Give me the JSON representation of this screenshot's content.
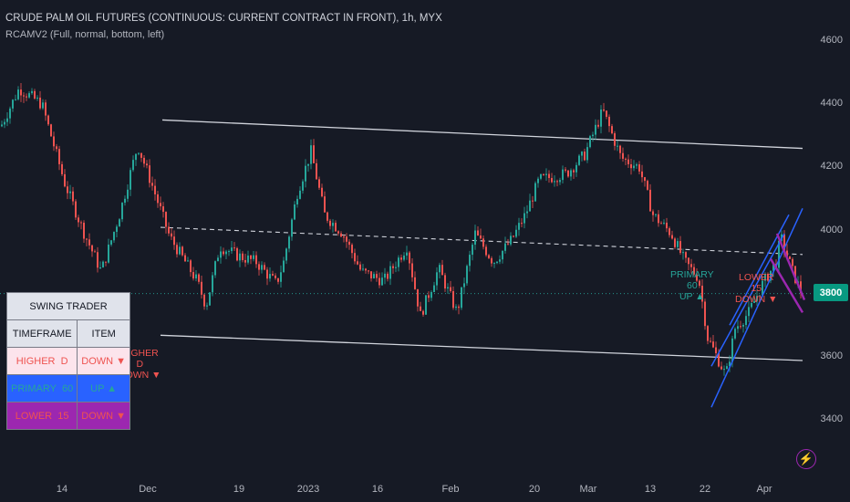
{
  "header": {
    "symbol_line": "CRUDE PALM OIL FUTURES (CONTINUOUS: CURRENT CONTRACT IN FRONT), 1h, MYX",
    "indicator_line": "RCAMV2 (Full, normal, bottom, left)"
  },
  "price_tag": "3800",
  "icon": "lightning-icon",
  "colors": {
    "background": "#161a25",
    "up": "#26a69a",
    "down": "#ef5350",
    "channel_blue": "#2962ff",
    "channel_purple": "#9c27b0",
    "trendline": "#d1d4dc",
    "price_tag": "#089981"
  },
  "swing_table": {
    "title": "SWING TRADER",
    "headers": [
      "TIMEFRAME",
      "ITEM"
    ],
    "rows": [
      {
        "label": "HIGHER",
        "tf": "D",
        "dir": "DOWN ▼",
        "bg": "#fce4ec",
        "fg": "#ef5350"
      },
      {
        "label": "PRIMARY",
        "tf": "60",
        "dir": "UP ▲",
        "bg": "#2962ff",
        "fg": "#26a69a"
      },
      {
        "label": "LOWER",
        "tf": "15",
        "dir": "DOWN ▼",
        "bg": "#9c27b0",
        "fg": "#ef5350"
      }
    ]
  },
  "annotations": {
    "higher": "HIGHER\nD\nDOWN ▼",
    "primary": "PRIMARY\n60\nUP ▲",
    "lower": "LOWER\n15\nDOWN ▼"
  },
  "chart_data": {
    "type": "candlestick",
    "title": "CRUDE PALM OIL FUTURES (CONTINUOUS: CURRENT CONTRACT IN FRONT), 1h, MYX",
    "y_ticks": [
      3400,
      3600,
      3800,
      4000,
      4200,
      4400,
      4600
    ],
    "ylim": [
      3320,
      4700
    ],
    "x_ticks": [
      "14",
      "Dec",
      "19",
      "2023",
      "16",
      "Feb",
      "20",
      "Mar",
      "13",
      "22",
      "Apr"
    ],
    "last_price": 3800,
    "price_path": [
      [
        0,
        4330
      ],
      [
        20,
        4450
      ],
      [
        45,
        4400
      ],
      [
        70,
        4150
      ],
      [
        90,
        4000
      ],
      [
        110,
        3870
      ],
      [
        130,
        4050
      ],
      [
        150,
        4270
      ],
      [
        165,
        4150
      ],
      [
        185,
        3980
      ],
      [
        215,
        3840
      ],
      [
        225,
        3760
      ],
      [
        240,
        3950
      ],
      [
        260,
        3920
      ],
      [
        280,
        3900
      ],
      [
        302,
        3830
      ],
      [
        310,
        3900
      ],
      [
        325,
        4120
      ],
      [
        340,
        4250
      ],
      [
        355,
        4050
      ],
      [
        375,
        3990
      ],
      [
        395,
        3870
      ],
      [
        420,
        3840
      ],
      [
        445,
        3950
      ],
      [
        460,
        3730
      ],
      [
        480,
        3880
      ],
      [
        500,
        3740
      ],
      [
        520,
        3990
      ],
      [
        540,
        3900
      ],
      [
        560,
        3970
      ],
      [
        575,
        4050
      ],
      [
        590,
        4160
      ],
      [
        620,
        4180
      ],
      [
        640,
        4240
      ],
      [
        660,
        4380
      ],
      [
        680,
        4230
      ],
      [
        700,
        4200
      ],
      [
        715,
        4050
      ],
      [
        735,
        3990
      ],
      [
        750,
        3900
      ],
      [
        765,
        3850
      ],
      [
        775,
        3660
      ],
      [
        785,
        3600
      ],
      [
        795,
        3540
      ],
      [
        805,
        3690
      ],
      [
        820,
        3740
      ],
      [
        835,
        3830
      ],
      [
        850,
        3900
      ],
      [
        855,
        3980
      ],
      [
        868,
        3870
      ],
      [
        878,
        3800
      ]
    ]
  }
}
